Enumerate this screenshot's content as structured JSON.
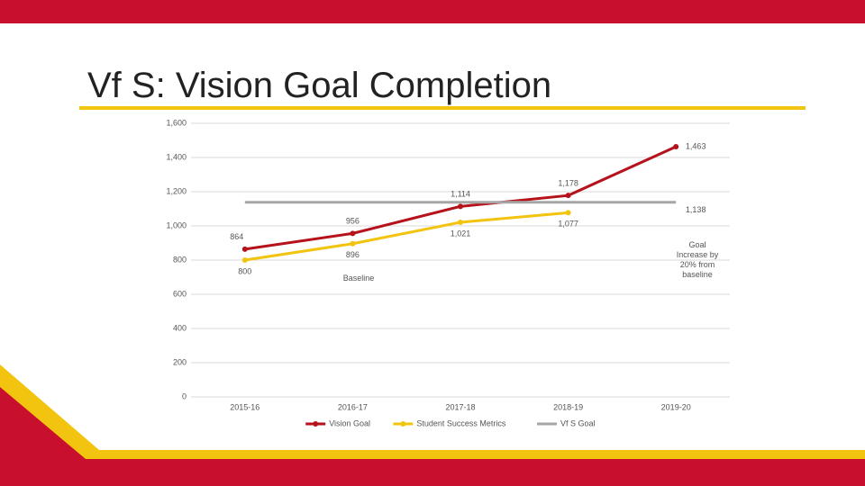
{
  "chart_data": {
    "type": "line",
    "title": "Vf S: Vision Goal Completion",
    "categories": [
      "2015-16",
      "2016-17",
      "2017-18",
      "2018-19",
      "2019-20"
    ],
    "series": [
      {
        "name": "Vision Goal",
        "color": "#b5121b",
        "marker": true,
        "values": [
          864,
          956,
          1114,
          1178,
          1463
        ],
        "value_labels": [
          "864",
          "956",
          "1,114",
          "1,178",
          "1,463"
        ]
      },
      {
        "name": "Student Success Metrics",
        "color": "#f2c40f",
        "marker": true,
        "values": [
          800,
          896,
          1021,
          1077,
          null
        ],
        "value_labels": [
          "800",
          "896",
          "1,021",
          "1,077",
          null
        ]
      },
      {
        "name": "Vf S Goal",
        "color": "#a6a6a6",
        "marker": false,
        "values": [
          1138,
          1138,
          1138,
          1138,
          1138
        ],
        "value_labels": [
          null,
          null,
          null,
          null,
          "1,138"
        ]
      }
    ],
    "ylim": [
      0,
      1600
    ],
    "yticks": [
      0,
      200,
      400,
      600,
      800,
      {
        "value": 1000,
        "label": "1,000"
      },
      {
        "value": 1200,
        "label": "1,200"
      },
      {
        "value": 1400,
        "label": "1,400"
      },
      {
        "value": 1600,
        "label": "1,600"
      }
    ],
    "grid": true,
    "legend": "bottom",
    "annotations": [
      "Baseline",
      "Goal Increase by 20% from baseline"
    ]
  }
}
